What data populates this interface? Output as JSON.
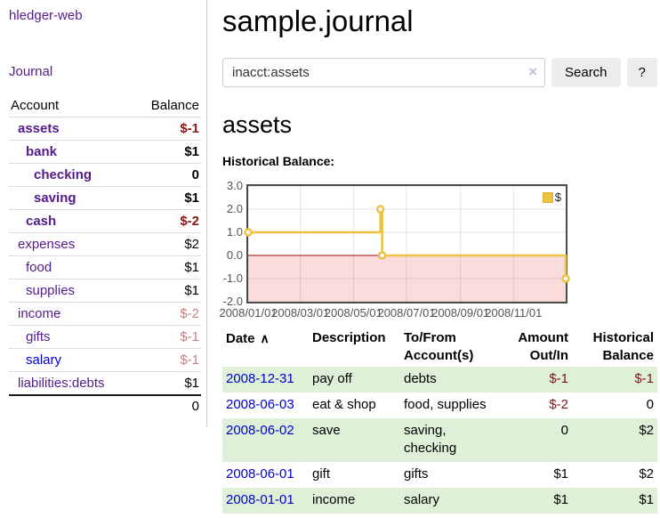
{
  "colors": {
    "link_visited": "#551a8b",
    "link_unvisited": "#0000cc",
    "negative_strong": "#8b1717",
    "negative_soft": "#c08181",
    "register_negative": "#7f1616",
    "row_green": "#dff0d8",
    "accent_gold": "#edc240",
    "sidebar_border": "#ccc"
  },
  "sidebar": {
    "app_title": "hledger-web",
    "journal_link": "Journal",
    "accounts": {
      "col_account": "Account",
      "col_balance": "Balance",
      "rows": [
        {
          "name": "assets",
          "depth": 1,
          "bold": true,
          "balance": "$-1",
          "balance_style": "neg",
          "link_style": "visited"
        },
        {
          "name": "bank",
          "depth": 2,
          "bold": true,
          "balance": "$1",
          "balance_style": "pos",
          "link_style": "visited"
        },
        {
          "name": "checking",
          "depth": 3,
          "bold": true,
          "balance": "0",
          "balance_style": "pos",
          "link_style": "visited"
        },
        {
          "name": "saving",
          "depth": 3,
          "bold": true,
          "balance": "$1",
          "balance_style": "pos",
          "link_style": "visited"
        },
        {
          "name": "cash",
          "depth": 2,
          "bold": true,
          "balance": "$-2",
          "balance_style": "neg",
          "link_style": "visited"
        },
        {
          "name": "expenses",
          "depth": 1,
          "bold": false,
          "balance": "$2",
          "balance_style": "pos",
          "link_style": "visited"
        },
        {
          "name": "food",
          "depth": 2,
          "bold": false,
          "balance": "$1",
          "balance_style": "pos",
          "link_style": "visited"
        },
        {
          "name": "supplies",
          "depth": 2,
          "bold": false,
          "balance": "$1",
          "balance_style": "pos",
          "link_style": "visited"
        },
        {
          "name": "income",
          "depth": 1,
          "bold": false,
          "balance": "$-2",
          "balance_style": "neg-soft",
          "link_style": "visited"
        },
        {
          "name": "gifts",
          "depth": 2,
          "bold": false,
          "balance": "$-1",
          "balance_style": "neg-soft",
          "link_style": "visited"
        },
        {
          "name": "salary",
          "depth": 2,
          "bold": false,
          "balance": "$-1",
          "balance_style": "neg-soft",
          "link_style": "unvisited"
        },
        {
          "name": "liabilities:debts",
          "depth": 1,
          "bold": false,
          "balance": "$1",
          "balance_style": "pos",
          "link_style": "visited",
          "last": true
        }
      ],
      "total": "0"
    }
  },
  "main": {
    "title": "sample.journal",
    "search": {
      "value": "inacct:assets",
      "clear_icon": "×",
      "button_label": "Search",
      "help_label": "?"
    },
    "account_heading": "assets",
    "register": {
      "sort_icon": "∧",
      "columns": [
        {
          "label": "Date",
          "label2": "",
          "align": "left",
          "sorted": true
        },
        {
          "label": "Description",
          "label2": "",
          "align": "left"
        },
        {
          "label": "To/From",
          "label2": "Account(s)",
          "align": "left"
        },
        {
          "label": "Amount",
          "label2": "Out/In",
          "align": "right"
        },
        {
          "label": "Historical",
          "label2": "Balance",
          "align": "right"
        }
      ],
      "rows": [
        {
          "date": "2008-12-31",
          "description": "pay off",
          "accounts": "debts",
          "amount": "$-1",
          "amount_negative": true,
          "balance": "$-1",
          "balance_negative": true
        },
        {
          "date": "2008-06-03",
          "description": "eat & shop",
          "accounts": "food, supplies",
          "amount": "$-2",
          "amount_negative": true,
          "balance": "0",
          "balance_negative": false
        },
        {
          "date": "2008-06-02",
          "description": "save",
          "accounts": "saving, checking",
          "amount": "0",
          "amount_negative": false,
          "balance": "$2",
          "balance_negative": false
        },
        {
          "date": "2008-06-01",
          "description": "gift",
          "accounts": "gifts",
          "amount": "$1",
          "amount_negative": false,
          "balance": "$2",
          "balance_negative": false
        },
        {
          "date": "2008-01-01",
          "description": "income",
          "accounts": "salary",
          "amount": "$1",
          "amount_negative": false,
          "balance": "$1",
          "balance_negative": false
        }
      ]
    }
  },
  "chart_data": {
    "type": "line",
    "title": "Historical Balance:",
    "legend": [
      {
        "label": "$",
        "color": "#edc240"
      }
    ],
    "legend_position": "top-right",
    "x_start": "2008-01-01",
    "x_end": "2008-12-31",
    "ylim": [
      -2,
      3
    ],
    "grid": true,
    "y_ticks": [
      {
        "v": 3,
        "label": "3.0"
      },
      {
        "v": 2,
        "label": "2.0"
      },
      {
        "v": 1,
        "label": "1.0"
      },
      {
        "v": 0,
        "label": "0.0"
      },
      {
        "v": -1,
        "label": "-1.0"
      },
      {
        "v": -2,
        "label": "-2.0"
      }
    ],
    "x_ticks": [
      {
        "date": "2008-01-01",
        "label": "2008/01/01"
      },
      {
        "date": "2008-03-01",
        "label": "2008/03/01"
      },
      {
        "date": "2008-05-01",
        "label": "2008/05/01"
      },
      {
        "date": "2008-07-01",
        "label": "2008/07/01"
      },
      {
        "date": "2008-09-01",
        "label": "2008/09/01"
      },
      {
        "date": "2008-11-01",
        "label": "2008/11/01"
      }
    ],
    "series": [
      {
        "name": "$",
        "color": "#edc240",
        "step": true,
        "points": [
          {
            "date": "2008-01-01",
            "value": 1
          },
          {
            "date": "2008-06-01",
            "value": 2
          },
          {
            "date": "2008-06-03",
            "value": 0
          },
          {
            "date": "2008-12-31",
            "value": -1
          }
        ]
      }
    ],
    "negative_region_color": "#fbdcdc",
    "zero_line_color": "#991111",
    "gridline_color": "rgba(0,0,0,0.10)"
  }
}
